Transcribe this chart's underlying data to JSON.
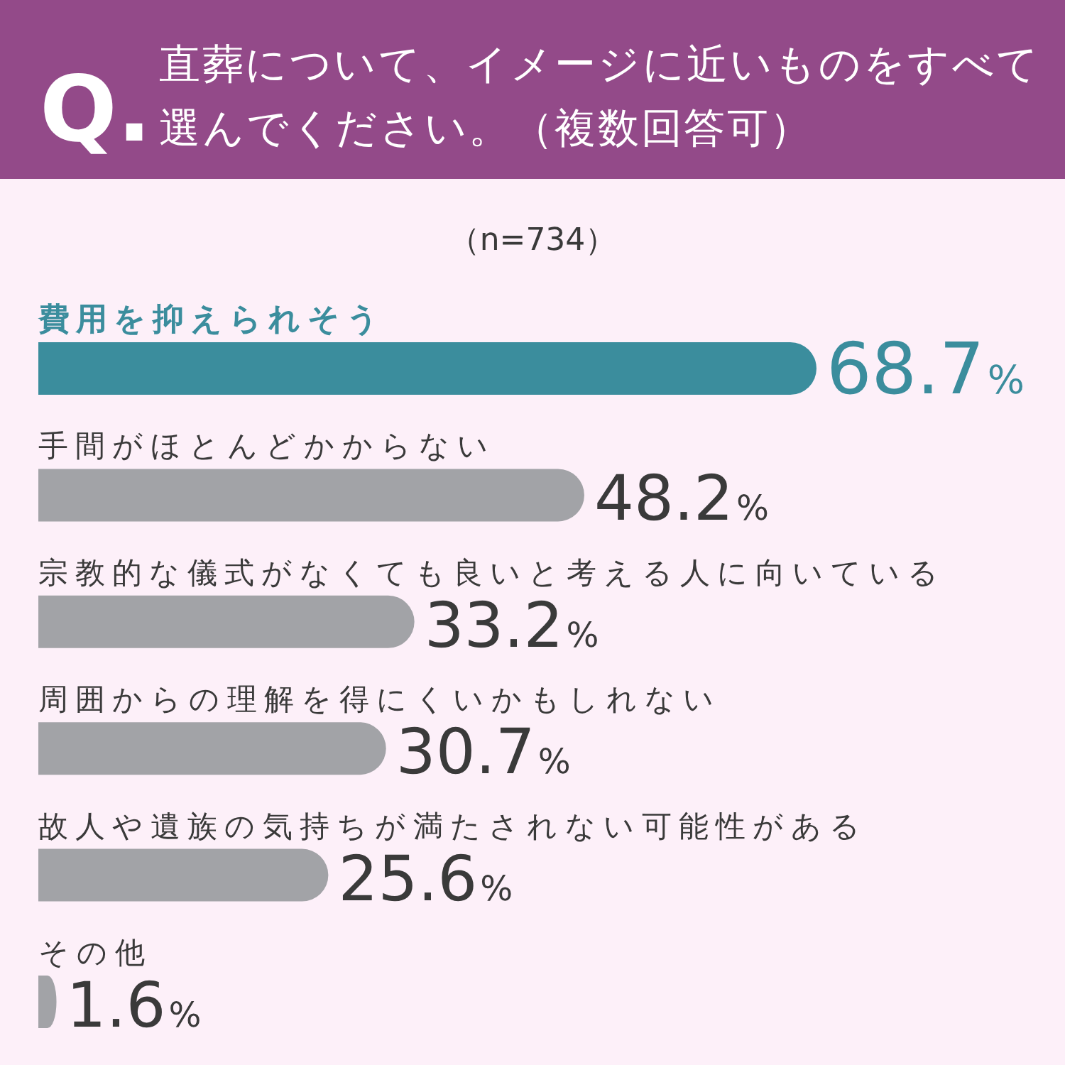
{
  "chart_data": {
    "type": "bar",
    "orientation": "horizontal",
    "title": "Q.直葬について、イメージに近いものをすべて選んでください。（複数回答可）",
    "subtitle": "（n=734）",
    "categories": [
      "費用を抑えられそう",
      "手間がほとんどかからない",
      "宗教的な儀式がなくても良いと考える人に向いている",
      "周囲からの理解を得にくいかもしれない",
      "故人や遺族の気持ちが満たされない可能性がある",
      "その他"
    ],
    "values": [
      68.7,
      48.2,
      33.2,
      30.7,
      25.6,
      1.6
    ],
    "value_labels": [
      "68.7%",
      "48.2%",
      "33.2%",
      "30.7%",
      "25.6%",
      "1.6%"
    ],
    "colors": [
      "#3b8d9d",
      "#a2a3a7",
      "#a2a3a7",
      "#a2a3a7",
      "#a2a3a7",
      "#a2a3a7"
    ]
  }
}
